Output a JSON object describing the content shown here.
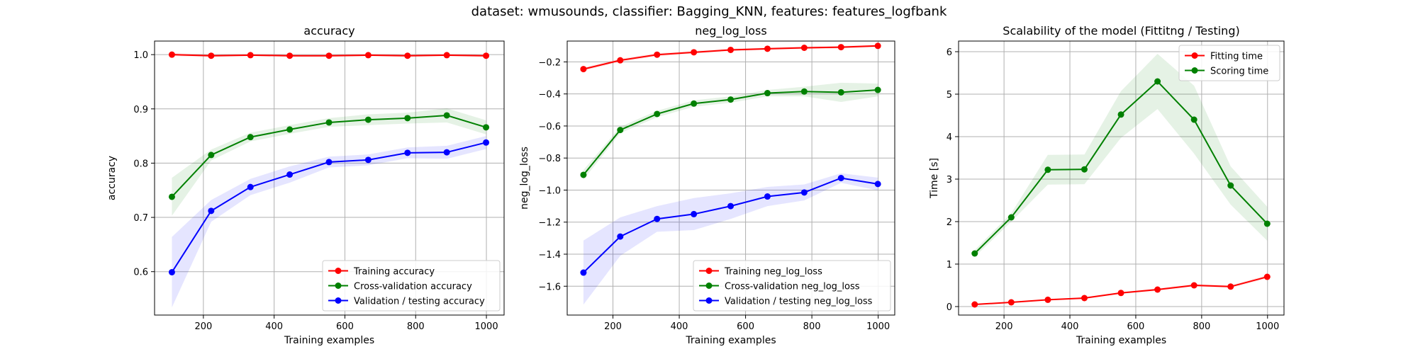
{
  "suptitle": "dataset: wmusounds, classifier: Bagging_KNN, features: features_logfbank",
  "colors": {
    "training": "#ff0000",
    "cv": "#008000",
    "validation": "#0000ff"
  },
  "chart_data": [
    {
      "type": "line",
      "title": "accuracy",
      "xlabel": "Training examples",
      "ylabel": "accuracy",
      "xlim": [
        62,
        1050
      ],
      "ylim": [
        0.52,
        1.025
      ],
      "xticks": [
        200,
        400,
        600,
        800,
        1000
      ],
      "yticks": [
        0.6,
        0.7,
        0.8,
        0.9,
        1.0
      ],
      "ytick_labels": [
        "0.6",
        "0.7",
        "0.8",
        "0.9",
        "1.0"
      ],
      "grid": true,
      "legend_position": "bottom-right",
      "x": [
        111,
        222,
        333,
        444,
        555,
        666,
        777,
        888,
        999
      ],
      "series": [
        {
          "name": "Training accuracy",
          "color": "#ff0000",
          "values": [
            1.0,
            0.998,
            0.999,
            0.998,
            0.998,
            0.999,
            0.998,
            0.999,
            0.998
          ],
          "band": [
            0.003,
            0.002,
            0.002,
            0.002,
            0.002,
            0.002,
            0.002,
            0.002,
            0.002
          ]
        },
        {
          "name": "Cross-validation accuracy",
          "color": "#008000",
          "values": [
            0.738,
            0.815,
            0.848,
            0.862,
            0.875,
            0.88,
            0.883,
            0.888,
            0.866
          ],
          "band": [
            0.035,
            0.01,
            0.008,
            0.008,
            0.008,
            0.01,
            0.01,
            0.013,
            0.013
          ]
        },
        {
          "name": "Validation / testing accuracy",
          "color": "#0000ff",
          "values": [
            0.599,
            0.712,
            0.756,
            0.779,
            0.802,
            0.806,
            0.819,
            0.82,
            0.838
          ],
          "band": [
            0.065,
            0.02,
            0.015,
            0.015,
            0.01,
            0.01,
            0.01,
            0.012,
            0.012
          ]
        }
      ]
    },
    {
      "type": "line",
      "title": "neg_log_loss",
      "xlabel": "Training examples",
      "ylabel": "neg_log_loss",
      "xlim": [
        62,
        1050
      ],
      "ylim": [
        -1.78,
        -0.07
      ],
      "xticks": [
        200,
        400,
        600,
        800,
        1000
      ],
      "yticks": [
        -1.6,
        -1.4,
        -1.2,
        -1.0,
        -0.8,
        -0.6,
        -0.4,
        -0.2
      ],
      "ytick_labels": [
        "−1.6",
        "−1.4",
        "−1.2",
        "−1.0",
        "−0.8",
        "−0.6",
        "−0.4",
        "−0.2"
      ],
      "grid": true,
      "legend_position": "bottom-right",
      "x": [
        111,
        222,
        333,
        444,
        555,
        666,
        777,
        888,
        999
      ],
      "series": [
        {
          "name": "Training neg_log_loss",
          "color": "#ff0000",
          "values": [
            -0.245,
            -0.19,
            -0.155,
            -0.14,
            -0.125,
            -0.118,
            -0.112,
            -0.108,
            -0.1
          ],
          "band": [
            0.01,
            0.01,
            0.01,
            0.008,
            0.008,
            0.008,
            0.008,
            0.008,
            0.008
          ]
        },
        {
          "name": "Cross-validation neg_log_loss",
          "color": "#008000",
          "values": [
            -0.905,
            -0.625,
            -0.525,
            -0.46,
            -0.435,
            -0.395,
            -0.385,
            -0.39,
            -0.375
          ],
          "band": [
            0.03,
            0.02,
            0.02,
            0.02,
            0.02,
            0.02,
            0.03,
            0.06,
            0.04
          ]
        },
        {
          "name": "Validation / testing neg_log_loss",
          "color": "#0000ff",
          "values": [
            -1.515,
            -1.29,
            -1.18,
            -1.15,
            -1.1,
            -1.04,
            -1.015,
            -0.925,
            -0.962
          ],
          "band": [
            0.2,
            0.12,
            0.08,
            0.1,
            0.08,
            0.06,
            0.05,
            0.03,
            0.04
          ]
        }
      ]
    },
    {
      "type": "line",
      "title": "Scalability of the model (Fittitng / Testing)",
      "xlabel": "Training examples",
      "ylabel": "Time [s]",
      "xlim": [
        62,
        1050
      ],
      "ylim": [
        -0.2,
        6.25
      ],
      "xticks": [
        200,
        400,
        600,
        800,
        1000
      ],
      "yticks": [
        0,
        1,
        2,
        3,
        4,
        5,
        6
      ],
      "ytick_labels": [
        "0",
        "1",
        "2",
        "3",
        "4",
        "5",
        "6"
      ],
      "grid": true,
      "legend_position": "top-right",
      "x": [
        111,
        222,
        333,
        444,
        555,
        666,
        777,
        888,
        999
      ],
      "series": [
        {
          "name": "Fitting time",
          "color": "#ff0000",
          "values": [
            0.05,
            0.1,
            0.16,
            0.2,
            0.32,
            0.4,
            0.5,
            0.47,
            0.7
          ],
          "band": [
            0.01,
            0.01,
            0.01,
            0.02,
            0.02,
            0.03,
            0.03,
            0.03,
            0.04
          ]
        },
        {
          "name": "Scoring time",
          "color": "#008000",
          "values": [
            1.25,
            2.1,
            3.22,
            3.23,
            4.52,
            5.3,
            4.4,
            2.85,
            1.95
          ],
          "band": [
            0.08,
            0.1,
            0.35,
            0.35,
            0.55,
            0.65,
            0.8,
            0.45,
            0.4
          ]
        }
      ]
    }
  ]
}
